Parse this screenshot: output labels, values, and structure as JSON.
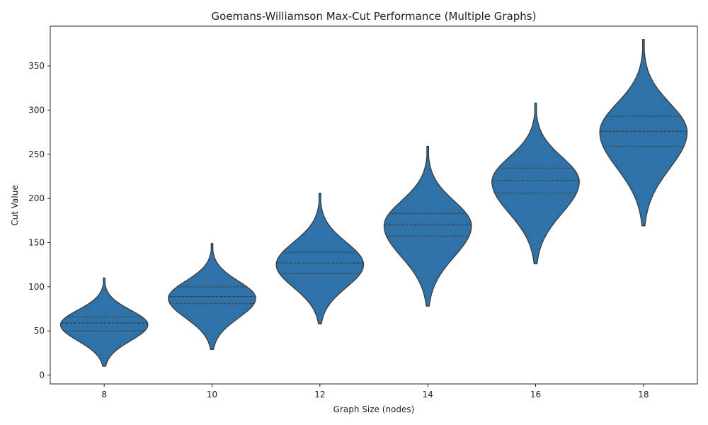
{
  "chart_data": {
    "type": "violin",
    "title": "Goemans-Williamson Max-Cut Performance (Multiple Graphs)",
    "xlabel": "Graph Size (nodes)",
    "ylabel": "Cut Value",
    "categories": [
      "8",
      "10",
      "12",
      "14",
      "16",
      "18"
    ],
    "yticks": [
      0,
      50,
      100,
      150,
      200,
      250,
      300,
      350
    ],
    "ylim": [
      -10,
      395
    ],
    "grid": false,
    "legend": "none",
    "fill_color": "#2f72a8",
    "line_color": "#3a3a3a",
    "distributions": [
      {
        "category": "8",
        "min": 10,
        "max": 110,
        "q1": 50,
        "median": 59,
        "q3": 66,
        "mode": 57,
        "max_halfwidth": 0.81
      },
      {
        "category": "10",
        "min": 29,
        "max": 149,
        "q1": 81,
        "median": 89,
        "q3": 100,
        "mode": 87,
        "max_halfwidth": 0.81
      },
      {
        "category": "12",
        "min": 58,
        "max": 206,
        "q1": 115,
        "median": 127,
        "q3": 139,
        "mode": 125,
        "max_halfwidth": 0.81
      },
      {
        "category": "14",
        "min": 78,
        "max": 259,
        "q1": 157,
        "median": 170,
        "q3": 183,
        "mode": 169,
        "max_halfwidth": 0.81
      },
      {
        "category": "16",
        "min": 126,
        "max": 308,
        "q1": 206,
        "median": 220,
        "q3": 234,
        "mode": 219,
        "max_halfwidth": 0.81
      },
      {
        "category": "18",
        "min": 169,
        "max": 380,
        "q1": 259,
        "median": 276,
        "q3": 293,
        "mode": 275,
        "max_halfwidth": 0.81
      }
    ]
  }
}
